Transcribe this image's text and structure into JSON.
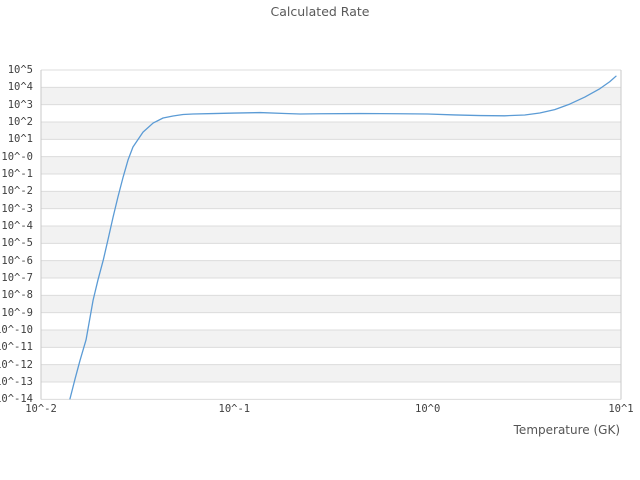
{
  "colors": {
    "background": "#ffffff",
    "band": "#f2f2f2",
    "gridline": "#dcdcdc",
    "border": "#c9c9c9",
    "title_text": "#595959",
    "tick_text": "#3f3f3f",
    "line": "#5b9bd5"
  },
  "chart_data": {
    "type": "line",
    "title": "Calculated Rate",
    "xlabel": "Temperature (GK)",
    "ylabel": "",
    "x_scale": "log",
    "y_scale": "log",
    "xlim": [
      0.01,
      10
    ],
    "ylim": [
      1e-14,
      100000.0
    ],
    "xlim_exp": [
      -2,
      1
    ],
    "ylim_exp": [
      -14,
      5
    ],
    "x_tick_labels": [
      "10^-2",
      "10^-1",
      "10^0",
      "10^1"
    ],
    "y_tick_labels": [
      "10^5",
      "10^4",
      "10^3",
      "10^2",
      "10^1",
      "10^-0",
      "10^-1",
      "10^-2",
      "10^-3",
      "10^-4",
      "10^-5",
      "10^-6",
      "10^-7",
      "10^-8",
      "10^-9",
      "10^-10",
      "10^-11",
      "10^-12",
      "10^-13",
      "10^-14"
    ],
    "grid": "horizontal-alternating-bands",
    "legend": "none",
    "series": [
      {
        "name": "Calculated Rate",
        "color": "#5b9bd5",
        "x": [
          0.0132,
          0.0141,
          0.015,
          0.0159,
          0.0171,
          0.0186,
          0.0197,
          0.021,
          0.0222,
          0.0236,
          0.025,
          0.0266,
          0.0282,
          0.0299,
          0.0337,
          0.038,
          0.0428,
          0.0482,
          0.0543,
          0.0611,
          0.0776,
          0.1,
          0.136,
          0.183,
          0.219,
          0.277,
          0.448,
          0.719,
          1.0,
          1.38,
          1.87,
          2.5,
          3.18,
          3.8,
          4.54,
          5.43,
          6.5,
          7.78,
          8.74,
          9.42
        ],
        "y": [
          1e-15,
          1e-14,
          1.5e-13,
          1.7e-12,
          2.7e-11,
          5.3e-09,
          7.6e-08,
          1.1e-06,
          1.6e-05,
          0.00033,
          0.0047,
          0.067,
          0.65,
          3.6,
          26,
          87,
          170,
          222,
          270,
          290,
          306,
          327,
          350,
          310,
          290,
          300,
          306,
          300,
          290,
          255,
          235,
          228,
          253,
          330,
          520,
          1080,
          2740,
          8400,
          21000,
          44000
        ]
      }
    ]
  }
}
